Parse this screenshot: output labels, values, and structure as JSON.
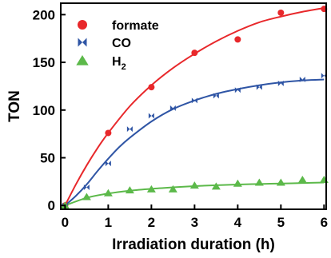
{
  "chart_data": {
    "type": "scatter",
    "xlabel": "Irradiation duration (h)",
    "ylabel": "TON",
    "xlim": [
      -0.1,
      6.05
    ],
    "ylim": [
      -4,
      212
    ],
    "xticks": [
      0,
      1,
      2,
      3,
      4,
      5,
      6
    ],
    "yticks": [
      0,
      50,
      100,
      150,
      200
    ],
    "legend_position": "top-left",
    "grid": false,
    "series": [
      {
        "name": "formate",
        "marker": "circle",
        "color": "#e8282b",
        "x": [
          0,
          1,
          2,
          3,
          4,
          5,
          6
        ],
        "y": [
          0,
          76,
          124,
          160,
          174,
          202,
          206
        ],
        "fit_x": [
          0,
          0.25,
          0.5,
          0.75,
          1,
          1.5,
          2,
          2.5,
          3,
          3.5,
          4,
          4.5,
          5,
          5.5,
          6
        ],
        "fit_y": [
          0,
          22,
          42,
          60,
          76,
          104,
          126,
          144,
          159,
          172,
          183,
          192,
          198,
          203,
          207
        ]
      },
      {
        "name": "CO",
        "marker": "bowtie",
        "color": "#2f55a5",
        "x": [
          0,
          0.5,
          1,
          1.5,
          2,
          2.5,
          3,
          3.5,
          4,
          4.5,
          5,
          5.5,
          6
        ],
        "y": [
          0,
          19,
          44,
          80,
          94,
          102,
          110,
          115,
          121,
          124,
          128,
          132,
          136
        ],
        "fit_x": [
          0,
          0.25,
          0.5,
          0.75,
          1,
          1.25,
          1.5,
          2,
          2.5,
          3,
          3.5,
          4,
          4.5,
          5,
          5.5,
          6
        ],
        "fit_y": [
          0,
          10,
          22,
          36,
          49,
          61,
          71,
          88,
          101,
          110,
          117,
          122,
          126,
          129,
          131,
          132
        ]
      },
      {
        "name_main": "H",
        "name_sub": "2",
        "marker": "triangle",
        "color": "#5cb94a",
        "x": [
          0,
          0.5,
          1,
          1.5,
          2,
          2.5,
          3,
          3.5,
          4,
          4.5,
          5,
          5.5,
          6
        ],
        "y": [
          0,
          9,
          13,
          16,
          17,
          17,
          21,
          20,
          23,
          24,
          24,
          27,
          27
        ],
        "fit_x": [
          0,
          0.5,
          1,
          1.5,
          2,
          2.5,
          3,
          3.5,
          4,
          4.5,
          5,
          5.5,
          6
        ],
        "fit_y": [
          0,
          8,
          12.5,
          15.5,
          17.5,
          19,
          20.3,
          21.2,
          22,
          22.5,
          23,
          23.5,
          24
        ]
      }
    ]
  }
}
